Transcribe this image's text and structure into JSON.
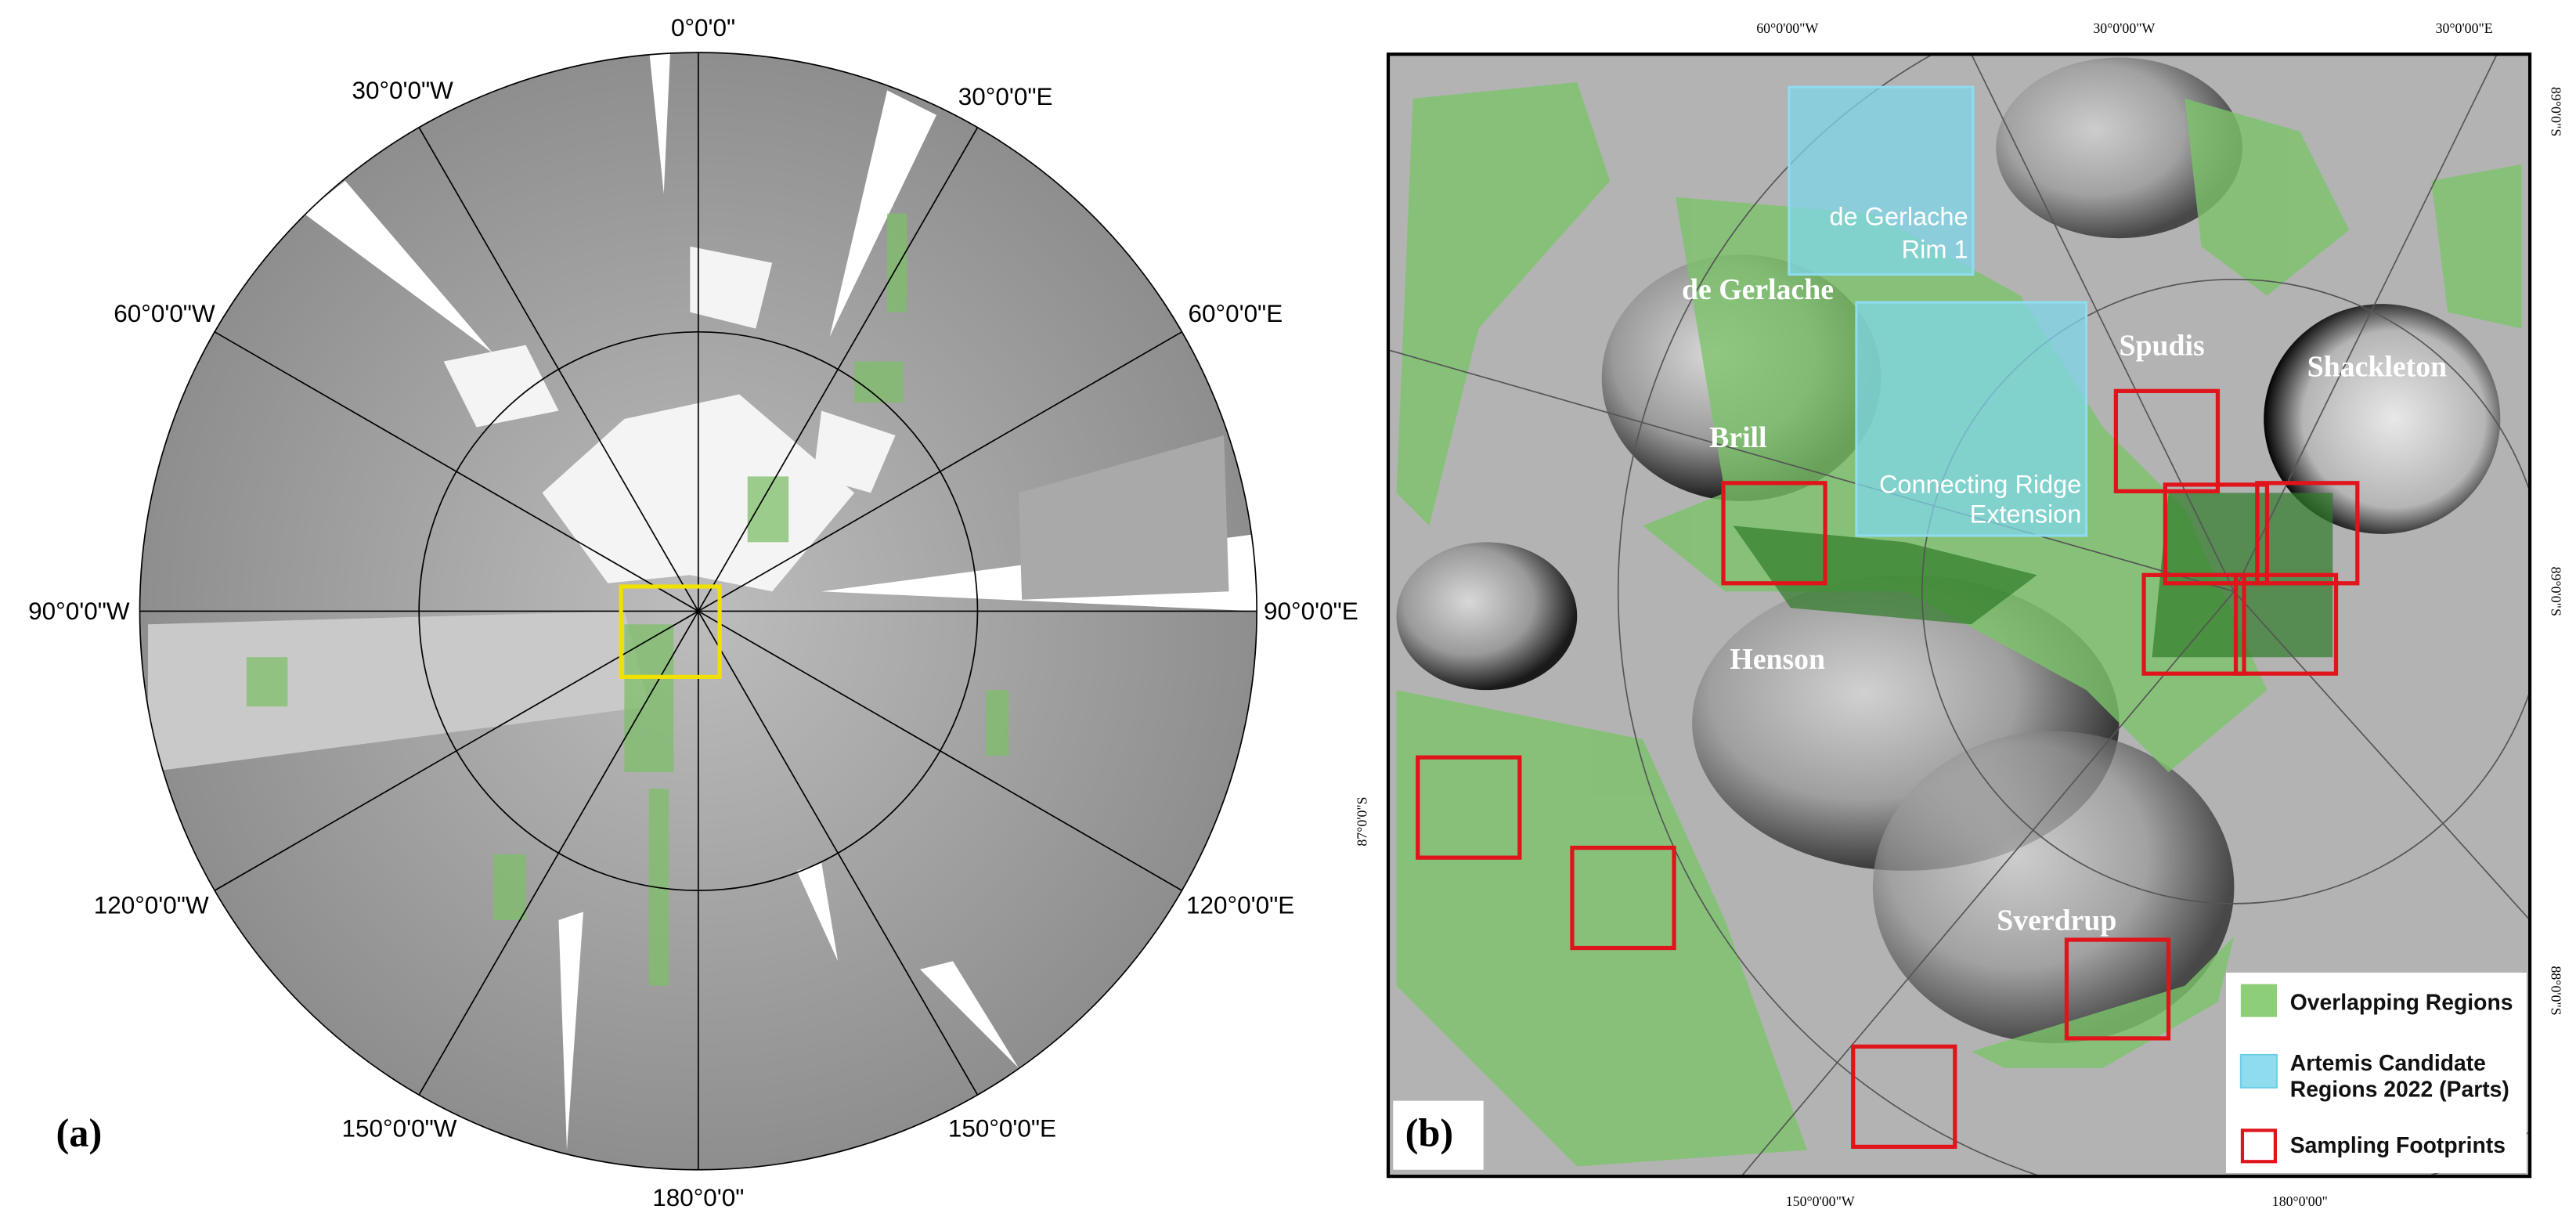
{
  "panel_a": {
    "label": "(a)",
    "graticule_labels": [
      "0°0'0\"",
      "30°0'0\"W",
      "30°0'0\"E",
      "60°0'0\"W",
      "60°0'0\"E",
      "90°0'0\"W",
      "90°0'0\"E",
      "120°0'0\"W",
      "120°0'0\"E",
      "150°0'0\"W",
      "150°0'0\"E",
      "180°0'0\""
    ]
  },
  "panel_b": {
    "label": "(b)",
    "top_ticks": [
      "60°0'00\"W",
      "30°0'00\"W",
      "30°0'00\"E"
    ],
    "bottom_ticks": [
      "150°0'00\"W",
      "180°0'00\""
    ],
    "left_ticks": [
      "87°0'0\"S"
    ],
    "right_ticks": [
      "89°0'0\"S",
      "89°0'0\"S",
      "88°0'0\"S"
    ],
    "crater_names": [
      "de Gerlache",
      "Brill",
      "Spudis",
      "Shackleton",
      "Henson",
      "Sverdrup"
    ],
    "candidate_regions": [
      {
        "lines": [
          "de Gerlache",
          "Rim 1"
        ]
      },
      {
        "lines": [
          "Connecting Ridge",
          "Extension"
        ]
      }
    ],
    "legend": [
      "Overlapping Regions",
      "Artemis Candidate",
      "Regions 2022 (Parts)",
      "Sampling Footprints"
    ]
  }
}
